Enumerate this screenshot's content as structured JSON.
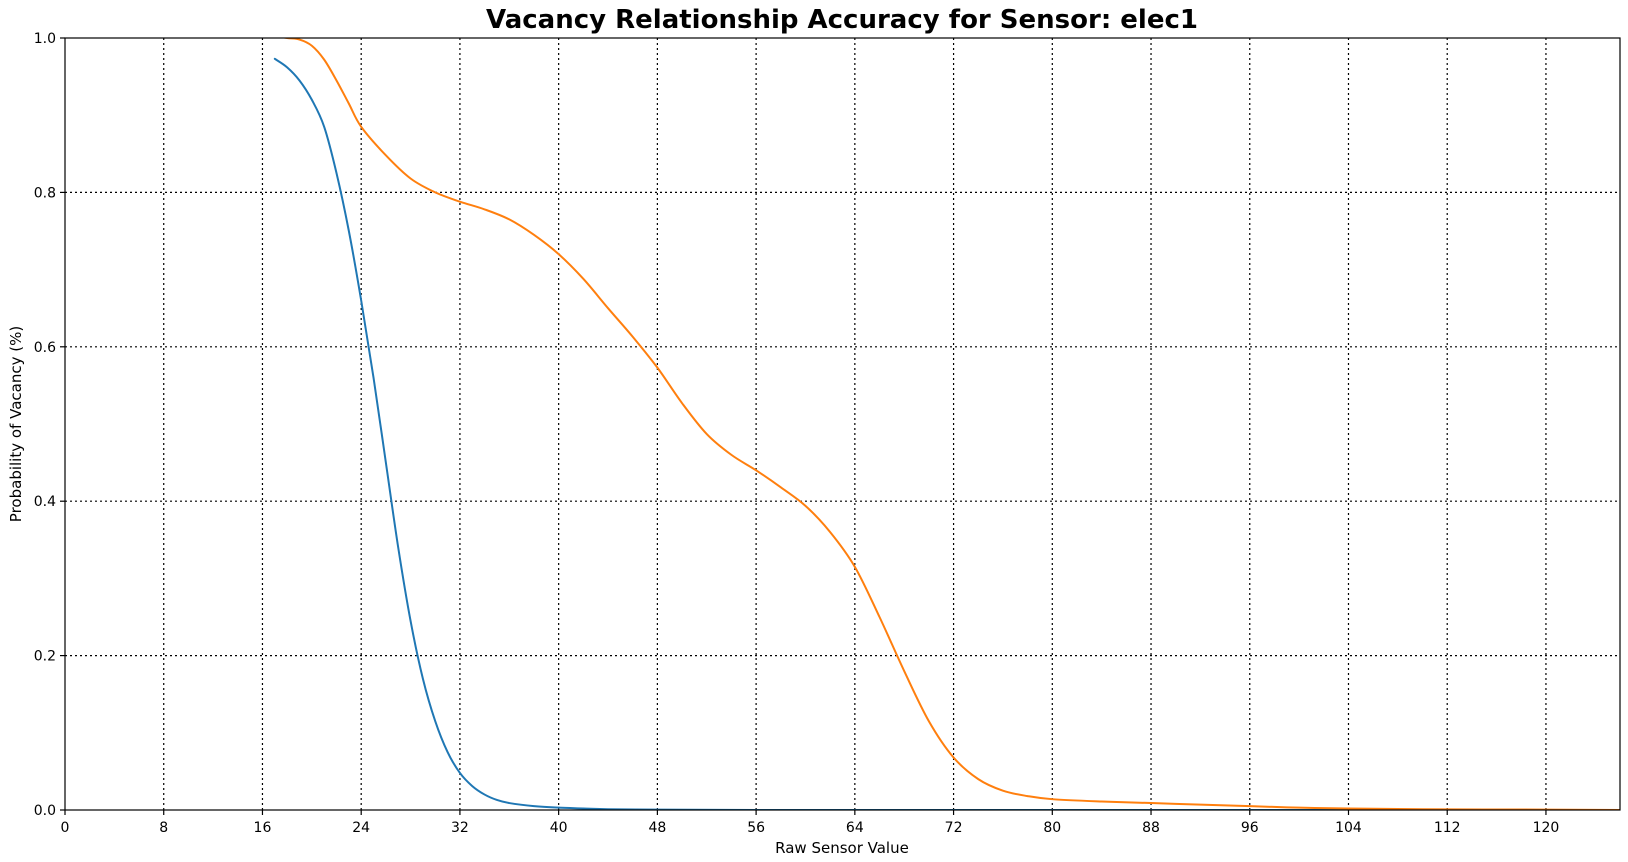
{
  "chart_data": {
    "type": "line",
    "title": "Vacancy Relationship Accuracy for Sensor: elec1",
    "xlabel": "Raw Sensor Value",
    "ylabel": "Probability of Vacancy (%)",
    "xlim": [
      0,
      126
    ],
    "ylim": [
      0.0,
      1.0
    ],
    "xticks": [
      0,
      8,
      16,
      24,
      32,
      40,
      48,
      56,
      64,
      72,
      80,
      88,
      96,
      104,
      112,
      120
    ],
    "yticks": [
      0.0,
      0.2,
      0.4,
      0.6,
      0.8,
      1.0
    ],
    "xtick_labels": [
      "0",
      "8",
      "16",
      "24",
      "32",
      "40",
      "48",
      "56",
      "64",
      "72",
      "80",
      "88",
      "96",
      "104",
      "112",
      "120"
    ],
    "ytick_labels": [
      "0.0",
      "0.2",
      "0.4",
      "0.6",
      "0.8",
      "1.0"
    ],
    "grid": true,
    "series": [
      {
        "color": "#1f77b4",
        "x": [
          17,
          18,
          19,
          20,
          21,
          22,
          23,
          24,
          25,
          26,
          27,
          28,
          29,
          30,
          31,
          32,
          33,
          34,
          35,
          36,
          38,
          40,
          42,
          44,
          48,
          56,
          64,
          72,
          80,
          96,
          112,
          126
        ],
        "y": [
          0.973,
          0.962,
          0.945,
          0.92,
          0.885,
          0.825,
          0.75,
          0.66,
          0.56,
          0.45,
          0.34,
          0.245,
          0.17,
          0.115,
          0.075,
          0.048,
          0.031,
          0.02,
          0.013,
          0.009,
          0.005,
          0.003,
          0.002,
          0.001,
          0.0005,
          0.0,
          0.0,
          0.0,
          0.0,
          0.0,
          0.0,
          0.0
        ]
      },
      {
        "color": "#ff7f0e",
        "x": [
          17,
          18,
          19,
          20,
          21,
          22,
          23,
          24,
          26,
          28,
          30,
          32,
          34,
          36,
          38,
          40,
          42,
          44,
          46,
          48,
          50,
          52,
          54,
          56,
          58,
          60,
          62,
          64,
          66,
          68,
          70,
          72,
          74,
          76,
          78,
          80,
          84,
          88,
          92,
          96,
          100,
          104,
          110,
          120,
          126
        ],
        "y": [
          1.003,
          1.0,
          0.998,
          0.99,
          0.972,
          0.945,
          0.915,
          0.885,
          0.848,
          0.818,
          0.8,
          0.788,
          0.778,
          0.765,
          0.745,
          0.72,
          0.688,
          0.65,
          0.613,
          0.573,
          0.527,
          0.487,
          0.46,
          0.44,
          0.418,
          0.394,
          0.36,
          0.315,
          0.25,
          0.18,
          0.115,
          0.068,
          0.04,
          0.025,
          0.018,
          0.014,
          0.011,
          0.009,
          0.007,
          0.005,
          0.003,
          0.002,
          0.001,
          0.0005,
          0.0
        ]
      }
    ]
  }
}
